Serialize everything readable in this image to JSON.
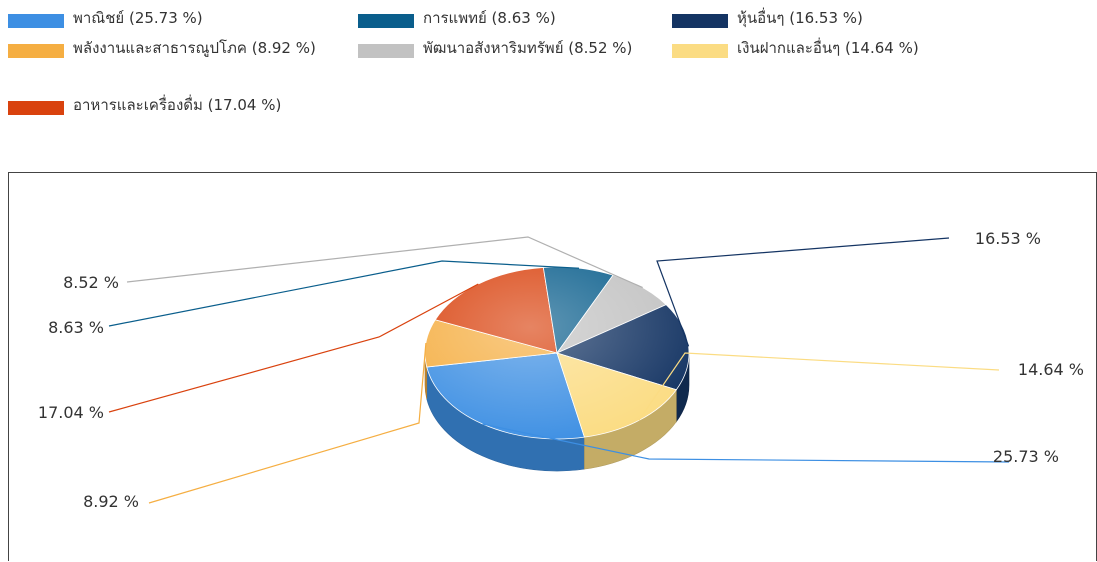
{
  "chart_data": {
    "type": "pie",
    "style": "3d-exploded-labels",
    "legend_position": "top",
    "series": [
      {
        "name": "พาณิชย์ (25.73 %)",
        "value": 25.73,
        "label": "25.73 %",
        "color": "#3d8fe3"
      },
      {
        "name": "พลังงานและสาธารณูปโภค (8.92 %)",
        "value": 8.92,
        "label": "8.92 %",
        "color": "#f5ae42"
      },
      {
        "name": "อาหารและเครื่องดื่ม (17.04 %)",
        "value": 17.04,
        "label": "17.04 %",
        "color": "#d9420e"
      },
      {
        "name": "การแพทย์ (8.63 %)",
        "value": 8.63,
        "label": "8.63 %",
        "color": "#0a5e8c"
      },
      {
        "name": "พัฒนาอสังหาริมทรัพย์ (8.52 %)",
        "value": 8.52,
        "label": "8.52 %",
        "color": "#c2c2c2"
      },
      {
        "name": "หุ้นอื่นๆ (16.53 %)",
        "value": 16.53,
        "label": "16.53 %",
        "color": "#143463"
      },
      {
        "name": "เงินฝากและอื่นๆ (14.64 %)",
        "value": 14.64,
        "label": "14.64 %",
        "color": "#fbdc83"
      }
    ]
  }
}
